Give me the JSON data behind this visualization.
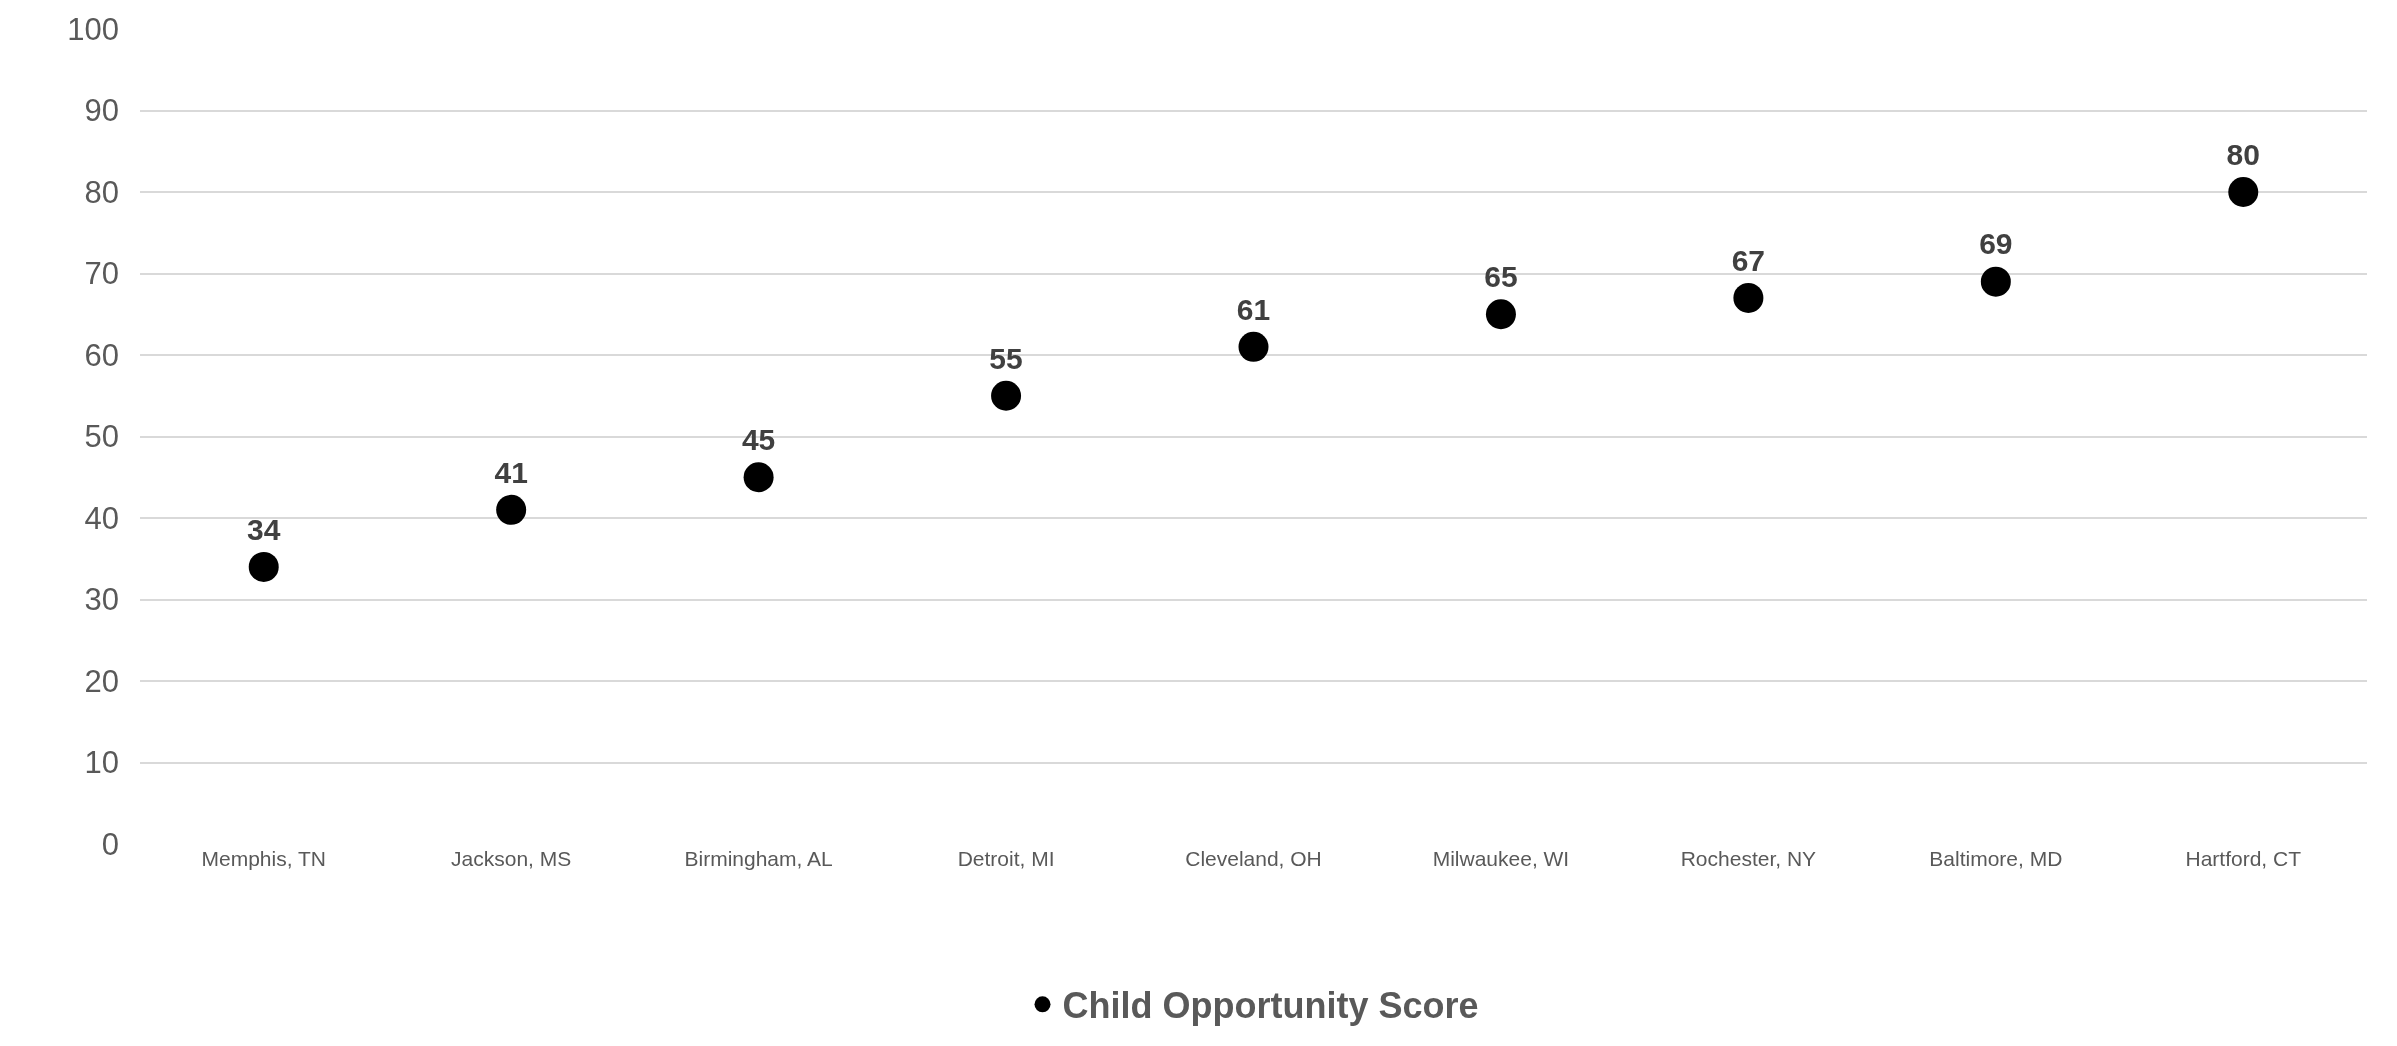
{
  "chart_data": {
    "type": "scatter",
    "categories": [
      "Memphis, TN",
      "Jackson, MS",
      "Birmingham, AL",
      "Detroit, MI",
      "Cleveland, OH",
      "Milwaukee, WI",
      "Rochester, NY",
      "Baltimore, MD",
      "Hartford, CT"
    ],
    "series": [
      {
        "name": "Child Opportunity Score",
        "color": "#000000",
        "values": [
          34,
          41,
          45,
          55,
          61,
          65,
          67,
          69,
          80
        ]
      }
    ],
    "ylim": [
      0,
      100
    ],
    "yticks": [
      0,
      10,
      20,
      30,
      40,
      50,
      60,
      70,
      80,
      90,
      100
    ],
    "grid": "y",
    "legend": "bottom",
    "marker": "circle",
    "data_labels": true
  }
}
